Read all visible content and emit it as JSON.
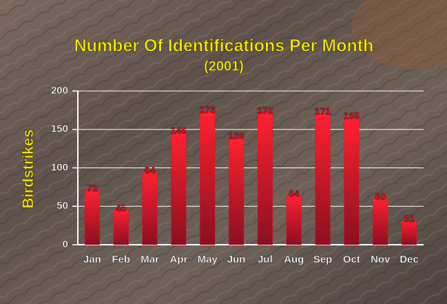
{
  "chart_data": {
    "type": "bar",
    "title": "Number Of Identifications Per Month",
    "subtitle": "(2001)",
    "y_label": "Birdstrikes",
    "categories": [
      "Jan",
      "Feb",
      "Mar",
      "Apr",
      "May",
      "Jun",
      "Jul",
      "Aug",
      "Sep",
      "Oct",
      "Nov",
      "Dec"
    ],
    "values": [
      71,
      45,
      94,
      146,
      173,
      139,
      172,
      64,
      171,
      165,
      60,
      31
    ],
    "color": "#e01424",
    "ylim": [
      0,
      200
    ],
    "yticks": [
      0,
      50,
      100,
      150,
      200
    ],
    "grid": true
  }
}
